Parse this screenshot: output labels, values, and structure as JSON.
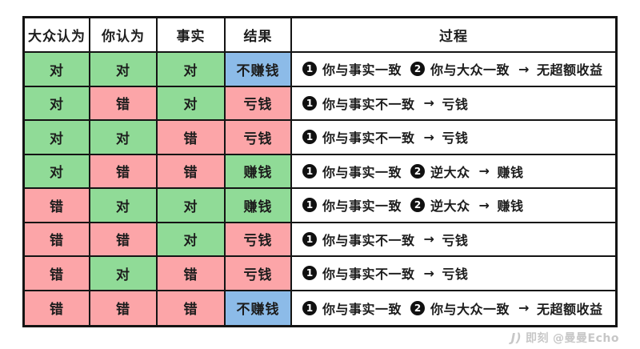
{
  "table": {
    "columns": [
      "大众认为",
      "你认为",
      "事实",
      "结果",
      "过程"
    ],
    "rows": [
      {
        "cells": [
          {
            "text": "对",
            "color": "green"
          },
          {
            "text": "对",
            "color": "green"
          },
          {
            "text": "对",
            "color": "green"
          },
          {
            "text": "不赚钱",
            "color": "blue"
          }
        ],
        "process": {
          "steps": [
            {
              "n": "1",
              "label": "你与事实一致"
            },
            {
              "n": "2",
              "label": "你与大众一致"
            }
          ],
          "arrow": "→",
          "outcome": "无超额收益"
        }
      },
      {
        "cells": [
          {
            "text": "对",
            "color": "green"
          },
          {
            "text": "错",
            "color": "pink"
          },
          {
            "text": "对",
            "color": "green"
          },
          {
            "text": "亏钱",
            "color": "pink"
          }
        ],
        "process": {
          "steps": [
            {
              "n": "1",
              "label": "你与事实不一致"
            }
          ],
          "arrow": "→",
          "outcome": "亏钱"
        }
      },
      {
        "cells": [
          {
            "text": "对",
            "color": "green"
          },
          {
            "text": "对",
            "color": "green"
          },
          {
            "text": "错",
            "color": "pink"
          },
          {
            "text": "亏钱",
            "color": "pink"
          }
        ],
        "process": {
          "steps": [
            {
              "n": "1",
              "label": "你与事实不一致"
            }
          ],
          "arrow": "→",
          "outcome": "亏钱"
        }
      },
      {
        "cells": [
          {
            "text": "对",
            "color": "green"
          },
          {
            "text": "错",
            "color": "pink"
          },
          {
            "text": "错",
            "color": "pink"
          },
          {
            "text": "赚钱",
            "color": "green"
          }
        ],
        "process": {
          "steps": [
            {
              "n": "1",
              "label": "你与事实一致"
            },
            {
              "n": "2",
              "label": "逆大众"
            }
          ],
          "arrow": "→",
          "outcome": "赚钱"
        }
      },
      {
        "cells": [
          {
            "text": "错",
            "color": "pink"
          },
          {
            "text": "对",
            "color": "green"
          },
          {
            "text": "对",
            "color": "green"
          },
          {
            "text": "赚钱",
            "color": "green"
          }
        ],
        "process": {
          "steps": [
            {
              "n": "1",
              "label": "你与事实一致"
            },
            {
              "n": "2",
              "label": "逆大众"
            }
          ],
          "arrow": "→",
          "outcome": "赚钱"
        }
      },
      {
        "cells": [
          {
            "text": "错",
            "color": "pink"
          },
          {
            "text": "错",
            "color": "pink"
          },
          {
            "text": "对",
            "color": "green"
          },
          {
            "text": "亏钱",
            "color": "pink"
          }
        ],
        "process": {
          "steps": [
            {
              "n": "1",
              "label": "你与事实不一致"
            }
          ],
          "arrow": "→",
          "outcome": "亏钱"
        }
      },
      {
        "cells": [
          {
            "text": "错",
            "color": "pink"
          },
          {
            "text": "对",
            "color": "green"
          },
          {
            "text": "错",
            "color": "pink"
          },
          {
            "text": "亏钱",
            "color": "pink"
          }
        ],
        "process": {
          "steps": [
            {
              "n": "1",
              "label": "你与事实不一致"
            }
          ],
          "arrow": "→",
          "outcome": "亏钱"
        }
      },
      {
        "cells": [
          {
            "text": "错",
            "color": "pink"
          },
          {
            "text": "错",
            "color": "pink"
          },
          {
            "text": "错",
            "color": "pink"
          },
          {
            "text": "不赚钱",
            "color": "blue"
          }
        ],
        "process": {
          "steps": [
            {
              "n": "1",
              "label": "你与事实一致"
            },
            {
              "n": "2",
              "label": "你与大众一致"
            }
          ],
          "arrow": "→",
          "outcome": "无超额收益"
        }
      }
    ]
  },
  "colors": {
    "green": "#90db97",
    "pink": "#fca5a8",
    "blue": "#8cbbe8",
    "border": "#141414",
    "watermark": "#c7c7c7"
  },
  "watermark": {
    "logo": "J)",
    "brand": "即刻",
    "handle": "@曼曼Echo"
  }
}
